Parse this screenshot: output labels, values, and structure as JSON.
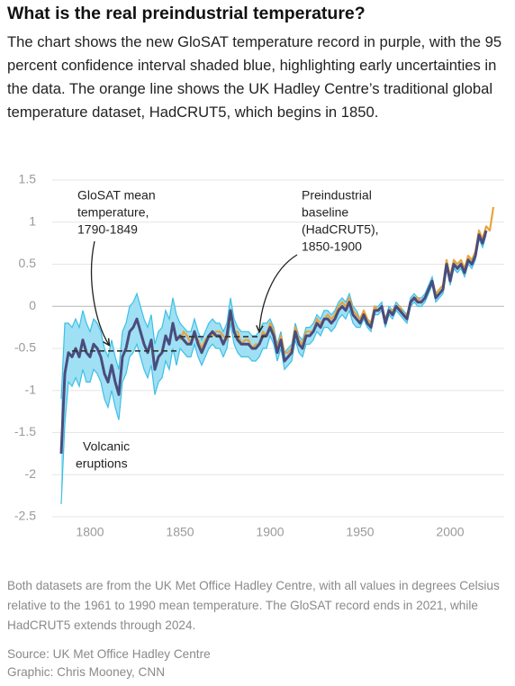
{
  "chart_data": {
    "type": "line",
    "title": "What is the real preindustrial temperature?",
    "subtitle": "The chart shows the new GloSAT temperature record in purple, with the 95 percent confidence interval shaded blue, highlighting early uncertainties in the data. The orange line shows the UK Hadley Centre’s traditional global temperature dataset, HadCRUT5, which begins in 1850.",
    "note": "Both datasets are from the UK Met Office Hadley Centre, with all values in degrees Celsius relative to the 1961 to 1990 mean temperature. The GloSAT record ends in 2021, while HadCRUT5 extends through 2024.",
    "source": [
      "Source: UK Met Office Hadley Centre",
      "Graphic: Chris Mooney, CNN"
    ],
    "xlim": [
      1779,
      2030
    ],
    "ylim": [
      -2.5,
      1.5
    ],
    "xticks": [
      1800,
      1850,
      1900,
      1950,
      2000
    ],
    "yticks": [
      1.5,
      1,
      0.5,
      0,
      -0.5,
      -1,
      -1.5,
      -2,
      -2.5
    ],
    "grid": true,
    "x": [
      1784,
      1786,
      1788,
      1790,
      1792,
      1794,
      1796,
      1798,
      1800,
      1802,
      1804,
      1806,
      1808,
      1810,
      1812,
      1814,
      1816,
      1818,
      1820,
      1822,
      1824,
      1826,
      1828,
      1830,
      1832,
      1834,
      1836,
      1838,
      1840,
      1842,
      1844,
      1846,
      1848,
      1850,
      1852,
      1854,
      1856,
      1858,
      1860,
      1862,
      1864,
      1866,
      1868,
      1870,
      1872,
      1874,
      1876,
      1878,
      1880,
      1882,
      1884,
      1886,
      1888,
      1890,
      1892,
      1894,
      1896,
      1898,
      1900,
      1902,
      1904,
      1906,
      1908,
      1910,
      1912,
      1914,
      1916,
      1918,
      1920,
      1922,
      1924,
      1926,
      1928,
      1930,
      1932,
      1934,
      1936,
      1938,
      1940,
      1942,
      1944,
      1946,
      1948,
      1950,
      1952,
      1954,
      1956,
      1958,
      1960,
      1962,
      1964,
      1966,
      1968,
      1970,
      1972,
      1974,
      1976,
      1978,
      1980,
      1982,
      1984,
      1986,
      1988,
      1990,
      1992,
      1994,
      1996,
      1998,
      2000,
      2002,
      2004,
      2006,
      2008,
      2010,
      2012,
      2014,
      2016,
      2018,
      2020,
      2022,
      2024
    ],
    "series": [
      {
        "color": "#4a4c7e",
        "band_color": "#9fe0f4",
        "band_edge": "#3dbfe6",
        "values": [
          -1.75,
          -0.8,
          -0.55,
          -0.6,
          -0.5,
          -0.6,
          -0.4,
          -0.55,
          -0.6,
          -0.45,
          -0.5,
          -0.6,
          -0.8,
          -0.9,
          -0.7,
          -0.9,
          -1.05,
          -0.6,
          -0.5,
          -0.3,
          -0.25,
          -0.15,
          -0.3,
          -0.45,
          -0.55,
          -0.4,
          -0.75,
          -0.6,
          -0.55,
          -0.35,
          -0.45,
          -0.2,
          -0.4,
          -0.35,
          -0.4,
          -0.45,
          -0.45,
          -0.3,
          -0.45,
          -0.55,
          -0.45,
          -0.35,
          -0.3,
          -0.35,
          -0.35,
          -0.45,
          -0.35,
          -0.05,
          -0.3,
          -0.4,
          -0.45,
          -0.45,
          -0.45,
          -0.5,
          -0.5,
          -0.45,
          -0.35,
          -0.35,
          -0.25,
          -0.35,
          -0.55,
          -0.4,
          -0.65,
          -0.6,
          -0.55,
          -0.3,
          -0.45,
          -0.5,
          -0.35,
          -0.35,
          -0.3,
          -0.2,
          -0.25,
          -0.15,
          -0.15,
          -0.2,
          -0.15,
          -0.05,
          0,
          -0.05,
          0.05,
          -0.1,
          -0.15,
          -0.2,
          -0.1,
          -0.2,
          -0.25,
          -0.05,
          -0.05,
          0,
          -0.2,
          -0.05,
          -0.1,
          0,
          -0.05,
          -0.1,
          -0.15,
          0.05,
          0.1,
          0.05,
          0.05,
          0.1,
          0.2,
          0.3,
          0.1,
          0.15,
          0.2,
          0.5,
          0.3,
          0.5,
          0.45,
          0.5,
          0.4,
          0.55,
          0.5,
          0.6,
          0.85,
          0.75,
          0.9,
          null,
          null
        ],
        "upper": [
          -1.1,
          -0.2,
          -0.2,
          -0.25,
          -0.15,
          -0.25,
          -0.05,
          -0.2,
          -0.3,
          -0.15,
          -0.2,
          -0.3,
          -0.5,
          -0.6,
          -0.4,
          -0.6,
          -0.75,
          -0.3,
          -0.2,
          0,
          0.05,
          0.15,
          0,
          -0.15,
          -0.25,
          -0.1,
          -0.45,
          -0.3,
          -0.25,
          -0.05,
          -0.15,
          0.1,
          -0.1,
          -0.2,
          -0.25,
          -0.3,
          -0.3,
          -0.15,
          -0.3,
          -0.4,
          -0.3,
          -0.2,
          -0.15,
          -0.2,
          -0.2,
          -0.3,
          -0.2,
          0.1,
          -0.15,
          -0.25,
          -0.3,
          -0.3,
          -0.3,
          -0.35,
          -0.35,
          -0.3,
          -0.2,
          -0.2,
          -0.15,
          -0.25,
          -0.45,
          -0.3,
          -0.55,
          -0.5,
          -0.45,
          -0.2,
          -0.35,
          -0.4,
          -0.25,
          -0.25,
          -0.2,
          -0.1,
          -0.15,
          -0.05,
          -0.05,
          -0.1,
          -0.05,
          0.05,
          0.1,
          0.05,
          0.15,
          0,
          -0.05,
          -0.15,
          -0.05,
          -0.15,
          -0.2,
          0,
          0,
          0.05,
          -0.15,
          0,
          -0.05,
          0.05,
          0,
          -0.05,
          -0.1,
          0.1,
          0.15,
          0.1,
          0.1,
          0.15,
          0.25,
          0.35,
          0.15,
          0.2,
          0.25,
          0.55,
          0.35,
          0.55,
          0.5,
          0.55,
          0.45,
          0.6,
          0.55,
          0.65,
          0.9,
          0.8,
          0.95,
          null,
          null
        ],
        "lower": [
          -2.35,
          -1.4,
          -0.9,
          -0.95,
          -0.85,
          -0.95,
          -0.75,
          -0.9,
          -0.9,
          -0.75,
          -0.8,
          -0.9,
          -1.1,
          -1.2,
          -1,
          -1.2,
          -1.35,
          -0.9,
          -0.8,
          -0.6,
          -0.55,
          -0.45,
          -0.6,
          -0.75,
          -0.85,
          -0.7,
          -1.05,
          -0.9,
          -0.85,
          -0.65,
          -0.75,
          -0.5,
          -0.7,
          -0.5,
          -0.55,
          -0.6,
          -0.6,
          -0.45,
          -0.6,
          -0.7,
          -0.6,
          -0.5,
          -0.45,
          -0.5,
          -0.5,
          -0.6,
          -0.5,
          -0.2,
          -0.45,
          -0.55,
          -0.6,
          -0.6,
          -0.6,
          -0.65,
          -0.65,
          -0.6,
          -0.5,
          -0.5,
          -0.35,
          -0.45,
          -0.65,
          -0.5,
          -0.75,
          -0.7,
          -0.65,
          -0.4,
          -0.55,
          -0.6,
          -0.45,
          -0.45,
          -0.4,
          -0.3,
          -0.35,
          -0.25,
          -0.25,
          -0.3,
          -0.25,
          -0.15,
          -0.1,
          -0.15,
          -0.05,
          -0.2,
          -0.25,
          -0.25,
          -0.15,
          -0.25,
          -0.3,
          -0.1,
          -0.1,
          -0.05,
          -0.25,
          -0.1,
          -0.15,
          -0.05,
          -0.1,
          -0.15,
          -0.2,
          0,
          0.05,
          0,
          0,
          0.05,
          0.15,
          0.25,
          0.05,
          0.1,
          0.15,
          0.45,
          0.25,
          0.45,
          0.4,
          0.45,
          0.35,
          0.5,
          0.45,
          0.55,
          0.8,
          0.7,
          0.85,
          null,
          null
        ]
      },
      {
        "color": "#e9a43c",
        "values": [
          null,
          null,
          null,
          null,
          null,
          null,
          null,
          null,
          null,
          null,
          null,
          null,
          null,
          null,
          null,
          null,
          null,
          null,
          null,
          null,
          null,
          null,
          null,
          null,
          null,
          null,
          null,
          null,
          null,
          null,
          null,
          null,
          null,
          -0.4,
          -0.3,
          -0.35,
          -0.45,
          -0.35,
          -0.4,
          -0.5,
          -0.4,
          -0.35,
          -0.35,
          -0.3,
          -0.3,
          -0.35,
          -0.4,
          -0.1,
          -0.3,
          -0.3,
          -0.45,
          -0.4,
          -0.4,
          -0.5,
          -0.45,
          -0.45,
          -0.3,
          -0.35,
          -0.2,
          -0.3,
          -0.5,
          -0.35,
          -0.55,
          -0.55,
          -0.5,
          -0.25,
          -0.4,
          -0.45,
          -0.3,
          -0.3,
          -0.3,
          -0.15,
          -0.2,
          -0.15,
          -0.1,
          -0.15,
          -0.1,
          0,
          0.05,
          0,
          0.1,
          -0.05,
          -0.1,
          -0.15,
          -0.05,
          -0.15,
          -0.2,
          0,
          -0.05,
          0,
          -0.15,
          -0.05,
          -0.05,
          0,
          0,
          -0.1,
          -0.1,
          0.05,
          0.1,
          0.1,
          0.05,
          0.1,
          0.2,
          0.3,
          0.15,
          0.2,
          0.25,
          0.55,
          0.35,
          0.55,
          0.5,
          0.55,
          0.45,
          0.6,
          0.55,
          0.65,
          0.9,
          0.8,
          0.95,
          0.9,
          1.18
        ]
      }
    ],
    "annotations": [
      {
        "lines": [
          "GloSAT mean",
          "temperature,",
          "1790-1849"
        ],
        "value": -0.53,
        "x": [
          1790,
          1849
        ]
      },
      {
        "lines": [
          "Preindustrial",
          "baseline",
          "(HadCRUT5),",
          "1850-1900"
        ],
        "value": -0.36,
        "x": [
          1850,
          1900
        ]
      },
      {
        "lines": [
          "Volcanic",
          "eruptions"
        ]
      }
    ]
  }
}
